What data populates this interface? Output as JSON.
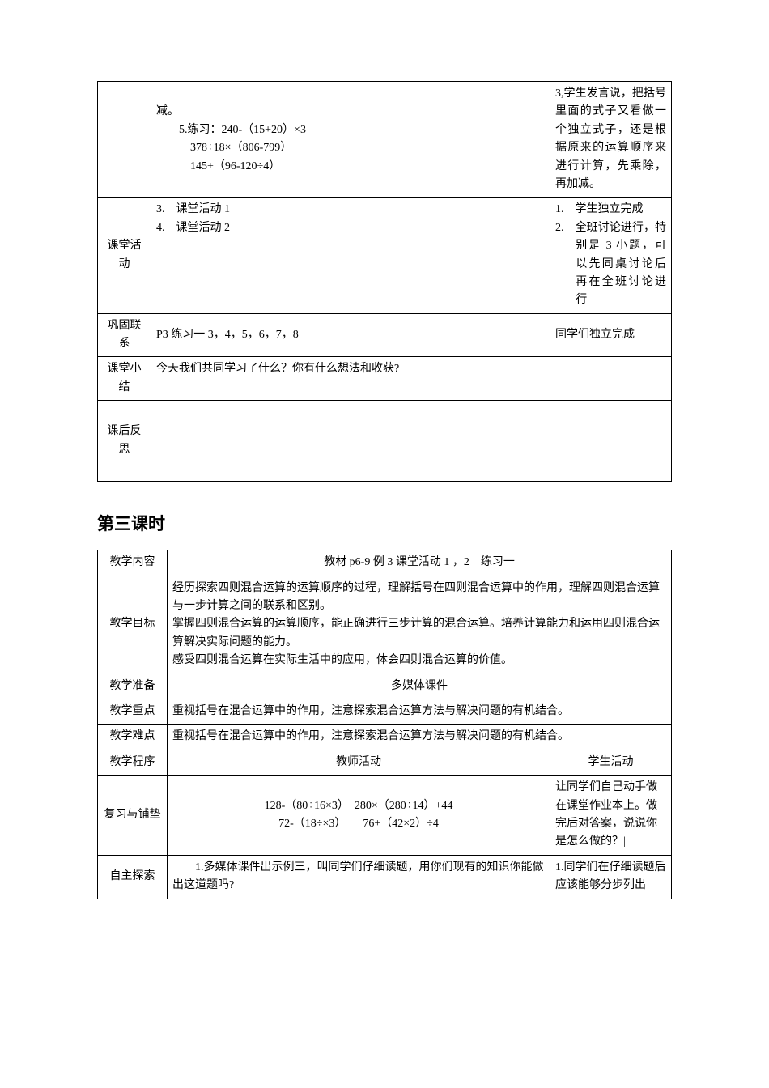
{
  "table1": {
    "r1": {
      "teacher_line1": "减。",
      "teacher_line2": "5.练习：240-（15+20）×3",
      "teacher_line3": "378÷18×（806-799）",
      "teacher_line4": "145+（96-120÷4）",
      "student": "3,学生发言说，把括号里面的式子又看做一个独立式子，还是根据原来的运算顺序来进行计算，先乘除，再加减。"
    },
    "r2": {
      "label": "课堂活动",
      "teacher_line1": "3.　课堂活动 1",
      "teacher_line2": "4.　课堂活动 2",
      "student_line1": "1.　学生独立完成",
      "student_line2": "2.　全班讨论进行，特别是 3 小题，可以先同桌讨论后再在全班讨论进行"
    },
    "r3": {
      "label": "巩固联系",
      "teacher": "P3 练习一 3，4，5，6，7，8",
      "student": "同学们独立完成"
    },
    "r4": {
      "label": "课堂小结",
      "teacher": "今天我们共同学习了什么？你有什么想法和收获?"
    },
    "r5": {
      "label": "课后反思"
    }
  },
  "section_title": "第三课时",
  "table2": {
    "r1": {
      "label": "教学内容",
      "content": "教材 p6-9 例 3 课堂活动 1 ，2　练习一"
    },
    "r2": {
      "label": "教学目标",
      "line1": "经历探索四则混合运算的运算顺序的过程，理解括号在四则混合运算中的作用，理解四则混合运算与一步计算之间的联系和区别。",
      "line2": "掌握四则混合运算的运算顺序，能正确进行三步计算的混合运算。培养计算能力和运用四则混合运算解决实际问题的能力。",
      "line3": "感受四则混合运算在实际生活中的应用，体会四则混合运算的价值。"
    },
    "r3": {
      "label": "教学准备",
      "content": "多媒体课件"
    },
    "r4": {
      "label": "教学重点",
      "content": "重视括号在混合运算中的作用，注意探索混合运算方法与解决问题的有机结合。"
    },
    "r5": {
      "label": "教学难点",
      "content": "重视括号在混合运算中的作用，注意探索混合运算方法与解决问题的有机结合。"
    },
    "r6": {
      "label": "教学程序",
      "teacher": "教师活动",
      "student": "学生活动"
    },
    "r7": {
      "label": "复习与铺垫",
      "teacher_line1": "128-（80÷16×3）　280×（280÷14）+44",
      "teacher_line2": "72-（18÷×3）　　76+（42×2）÷4",
      "student": "让同学们自己动手做在课堂作业本上。做完后对答案，说说你是怎么做的？|"
    },
    "r8": {
      "label": "自主探索",
      "teacher": "　　1.多媒体课件出示例三，叫同学们仔细读题，用你们现有的知识你能做出这道题吗?",
      "student": "1.同学们在仔细读题后应该能够分步列出"
    }
  }
}
